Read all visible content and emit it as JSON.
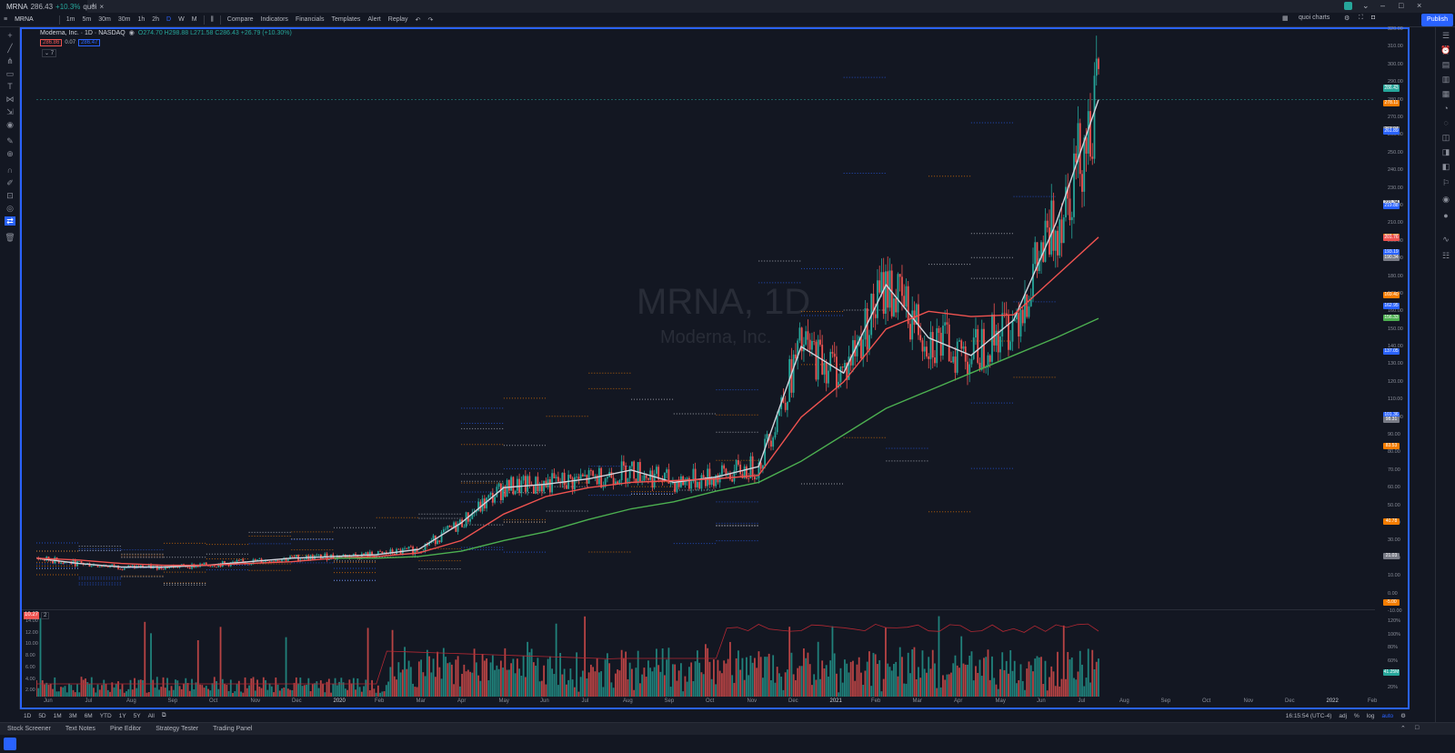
{
  "tab": {
    "symbol": "MRNA",
    "price": "286.43",
    "change": "+10.3%",
    "suffix": "quoi"
  },
  "toolbar": {
    "symbol": "MRNA",
    "intervals": [
      "1m",
      "5m",
      "30m",
      "30m",
      "1h",
      "2h",
      "D",
      "W",
      "M"
    ],
    "compare": "Compare",
    "indicators": "Indicators",
    "financials": "Financials",
    "templates": "Templates",
    "alert": "Alert",
    "replay": "Replay",
    "layout": "quoi charts",
    "publish": "Publish"
  },
  "legend": {
    "title": "Moderna, Inc. · 1D · NASDAQ",
    "ohlc": "O274.70  H298.88  L271.58  C286.43  +26.79 (+10.30%)",
    "box1": "286.86",
    "box2": "0.07",
    "box3": "286.47",
    "indicator": "7"
  },
  "watermark": {
    "symbol": "MRNA, 1D",
    "name": "Moderna, Inc."
  },
  "price_axis": {
    "labels": [
      "320.00",
      "310.00",
      "300.00",
      "290.00",
      "280.00",
      "270.00",
      "260.00",
      "250.00",
      "240.00",
      "230.00",
      "220.00",
      "210.00",
      "200.00",
      "190.00",
      "180.00",
      "170.00",
      "160.00",
      "150.00",
      "140.00",
      "130.00",
      "120.00",
      "110.00",
      "100.00",
      "90.00",
      "80.00",
      "70.00",
      "60.00",
      "50.00",
      "40.00",
      "30.00",
      "20.00",
      "10.00",
      "0.00",
      "-10.00"
    ],
    "badges": [
      {
        "text": "286.71",
        "color": "#26a69a"
      },
      {
        "text": "286.43",
        "color": "#26a69a"
      },
      {
        "text": "278.11",
        "color": "#f57c00"
      },
      {
        "text": "263.04",
        "color": "#787b86"
      },
      {
        "text": "261.89",
        "color": "#2962ff"
      },
      {
        "text": "221.34",
        "color": "#d1d4dc"
      },
      {
        "text": "219.88",
        "color": "#2962ff"
      },
      {
        "text": "202.37",
        "color": "#f57c00"
      },
      {
        "text": "201.76",
        "color": "#ef5350"
      },
      {
        "text": "193.19",
        "color": "#2962ff"
      },
      {
        "text": "190.34",
        "color": "#787b86"
      },
      {
        "text": "169.40",
        "color": "#f57c00"
      },
      {
        "text": "162.95",
        "color": "#2962ff"
      },
      {
        "text": "156.33",
        "color": "#4caf50"
      },
      {
        "text": "137.05",
        "color": "#2962ff"
      },
      {
        "text": "101.36",
        "color": "#2962ff"
      },
      {
        "text": "98.31",
        "color": "#787b86"
      },
      {
        "text": "83.53",
        "color": "#f57c00"
      },
      {
        "text": "40.78",
        "color": "#f57c00"
      },
      {
        "text": "21.03",
        "color": "#787b86"
      },
      {
        "text": "-5.00",
        "color": "#f57c00"
      }
    ]
  },
  "volume_axis": {
    "left_labels": [
      "14.00",
      "12.00",
      "10.00",
      "8.00",
      "6.00",
      "4.00",
      "2.00"
    ],
    "right_labels": [
      "120%",
      "100%",
      "80%",
      "60%",
      "40%",
      "20%"
    ],
    "badge": "41.25M",
    "pane_label": "10.27",
    "pane_indicator": "2"
  },
  "time_axis": [
    "Jun",
    "Jul",
    "Aug",
    "Sep",
    "Oct",
    "Nov",
    "Dec",
    "2020",
    "Feb",
    "Mar",
    "Apr",
    "May",
    "Jun",
    "Jul",
    "Aug",
    "Sep",
    "Oct",
    "Nov",
    "Dec",
    "2021",
    "Feb",
    "Mar",
    "Apr",
    "May",
    "Jun",
    "Jul",
    "Aug",
    "Sep",
    "Oct",
    "Nov",
    "Dec",
    "2022",
    "Feb"
  ],
  "bottom_bar": {
    "ranges": [
      "1D",
      "5D",
      "1M",
      "3M",
      "6M",
      "YTD",
      "1Y",
      "5Y",
      "All"
    ],
    "clock": "16:15:54 (UTC-4)",
    "adj": "adj",
    "pct": "%",
    "log": "log",
    "auto": "auto"
  },
  "panels": [
    "Stock Screener",
    "Text Notes",
    "Pine Editor",
    "Strategy Tester",
    "Trading Panel"
  ],
  "chart_data": {
    "type": "line",
    "title": "MRNA, 1D",
    "x": [
      "2019-06",
      "2019-07",
      "2019-08",
      "2019-09",
      "2019-10",
      "2019-11",
      "2019-12",
      "2020-01",
      "2020-02",
      "2020-03",
      "2020-04",
      "2020-05",
      "2020-06",
      "2020-07",
      "2020-08",
      "2020-09",
      "2020-10",
      "2020-11",
      "2020-12",
      "2021-01",
      "2021-02",
      "2021-03",
      "2021-04",
      "2021-05",
      "2021-06",
      "2021-07"
    ],
    "series": [
      {
        "name": "",
        "color": "#d1d4dc",
        "values": [
          20,
          17,
          15,
          15,
          16,
          18,
          20,
          21,
          22,
          25,
          40,
          60,
          62,
          65,
          70,
          63,
          66,
          72,
          140,
          125,
          175,
          145,
          135,
          155,
          210,
          280
        ]
      },
      {
        "name": "",
        "color": "#ef5350",
        "values": [
          20,
          19,
          17,
          16,
          16,
          17,
          18,
          20,
          21,
          23,
          30,
          45,
          55,
          60,
          63,
          64,
          65,
          67,
          100,
          120,
          150,
          160,
          157,
          158,
          180,
          202
        ]
      },
      {
        "name": "",
        "color": "#4caf50",
        "values": [
          null,
          null,
          null,
          null,
          null,
          null,
          null,
          20,
          20,
          21,
          24,
          30,
          35,
          42,
          48,
          52,
          58,
          63,
          75,
          90,
          105,
          115,
          125,
          135,
          145,
          156
        ]
      }
    ],
    "ylim": [
      -10,
      320
    ]
  }
}
